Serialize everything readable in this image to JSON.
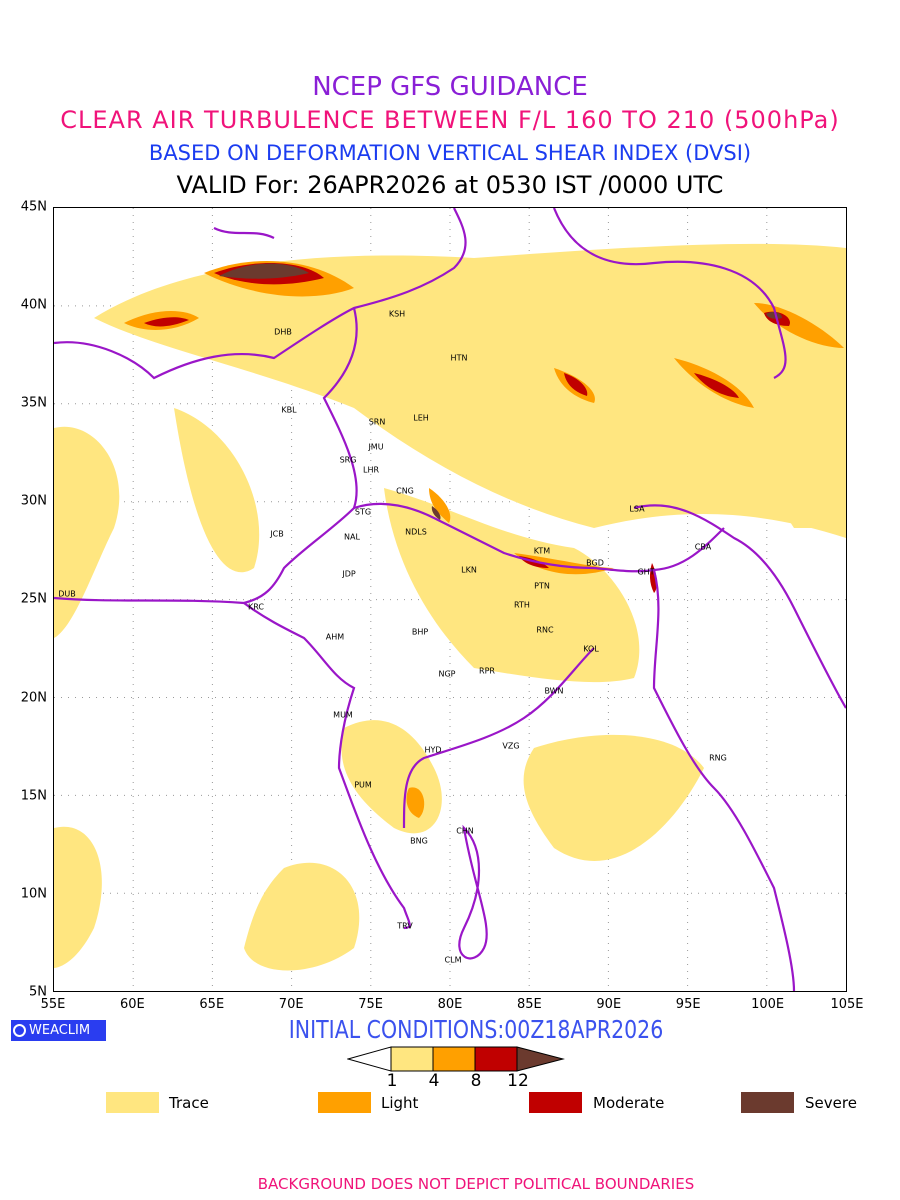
{
  "titles": {
    "line1": "NCEP GFS GUIDANCE",
    "line2": "CLEAR AIR TURBULENCE BETWEEN F/L 160 TO 210 (500hPa)",
    "line3": "BASED ON DEFORMATION VERTICAL SHEAR INDEX (DVSI)",
    "line4": "VALID For: 26APR2026 at 0530 IST /0000 UTC"
  },
  "axes": {
    "x_ticks": [
      "55E",
      "60E",
      "65E",
      "70E",
      "75E",
      "80E",
      "85E",
      "90E",
      "95E",
      "100E",
      "105E"
    ],
    "y_ticks": [
      "45N",
      "40N",
      "35N",
      "30N",
      "25N",
      "20N",
      "15N",
      "10N",
      "5N"
    ]
  },
  "stations": [
    "KSH",
    "HTN",
    "DHB",
    "KBL",
    "SRN",
    "LEH",
    "JMU",
    "SRG",
    "LHR",
    "CNG",
    "STG",
    "NAL",
    "NDLS",
    "JCB",
    "JDP",
    "LKN",
    "KTM",
    "LSA",
    "CBA",
    "BGD",
    "GHT",
    "PTN",
    "RTH",
    "RNC",
    "DUB",
    "KRC",
    "AHM",
    "BHP",
    "NGP",
    "RPR",
    "KOL",
    "BWN",
    "MUM",
    "HYD",
    "VZG",
    "PUM",
    "RNG",
    "CHN",
    "BNG",
    "TRV",
    "CLM"
  ],
  "logo": "WEACLIM",
  "initial_conditions": "INITIAL CONDITIONS:00Z18APR2026",
  "colorbar": {
    "levels": [
      "1",
      "4",
      "8",
      "12"
    ],
    "colors": [
      "#ffe680",
      "#ffa000",
      "#c00000",
      "#6b3a2e"
    ]
  },
  "legend": [
    {
      "label": "Trace",
      "color": "#ffe680"
    },
    {
      "label": "Light",
      "color": "#ffa000"
    },
    {
      "label": "Moderate",
      "color": "#c00000"
    },
    {
      "label": "Severe",
      "color": "#6b3a2e"
    }
  ],
  "footer": "BACKGROUND DOES NOT DEPICT POLITICAL BOUNDARIES"
}
